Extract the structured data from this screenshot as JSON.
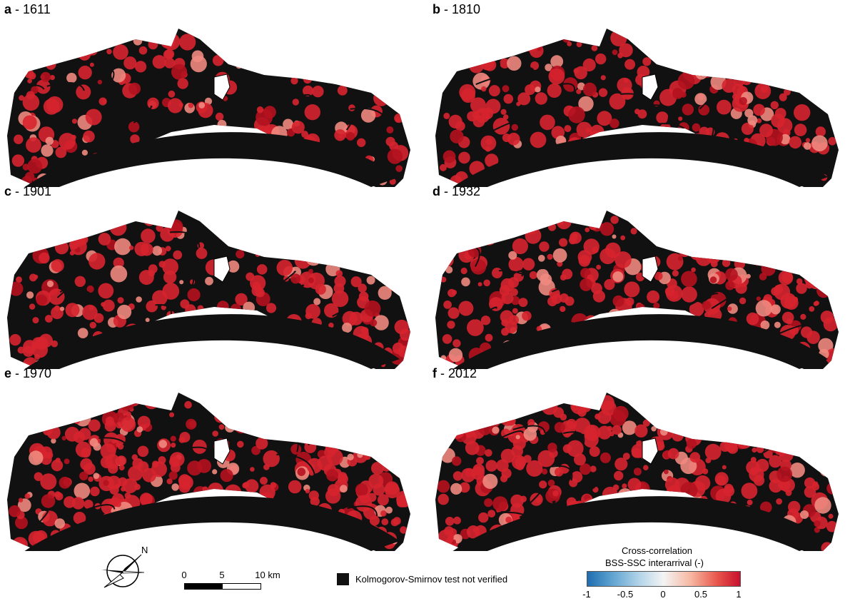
{
  "panels": [
    {
      "letter": "a",
      "year": "1611",
      "level": 0.35
    },
    {
      "letter": "b",
      "year": "1810",
      "level": 0.45
    },
    {
      "letter": "c",
      "year": "1901",
      "level": 0.5
    },
    {
      "letter": "d",
      "year": "1932",
      "level": 0.6
    },
    {
      "letter": "e",
      "year": "1970",
      "level": 0.8
    },
    {
      "letter": "f",
      "year": "2012",
      "level": 0.85
    }
  ],
  "separator": " - ",
  "north_arrow": {
    "label": "N",
    "icon": "compass-north-arrow-icon"
  },
  "scale_bar": {
    "ticks": [
      "0",
      "5",
      "10 km"
    ]
  },
  "legend": {
    "swatch_color": "#111111",
    "text": "Kolmogorov-Smirnov test not verified"
  },
  "colorbar": {
    "title_line1": "Cross-correlation",
    "title_line2": "BSS-SSC interarrival  (-)",
    "ticks": [
      "-1",
      "-0.5",
      "0",
      "0.5",
      "1"
    ],
    "colors": {
      "low": "#1f6db0",
      "mid": "#f4f4f4",
      "high": "#c8102e"
    }
  },
  "colors": {
    "land": "#111111",
    "water_red": "#d7232f"
  }
}
